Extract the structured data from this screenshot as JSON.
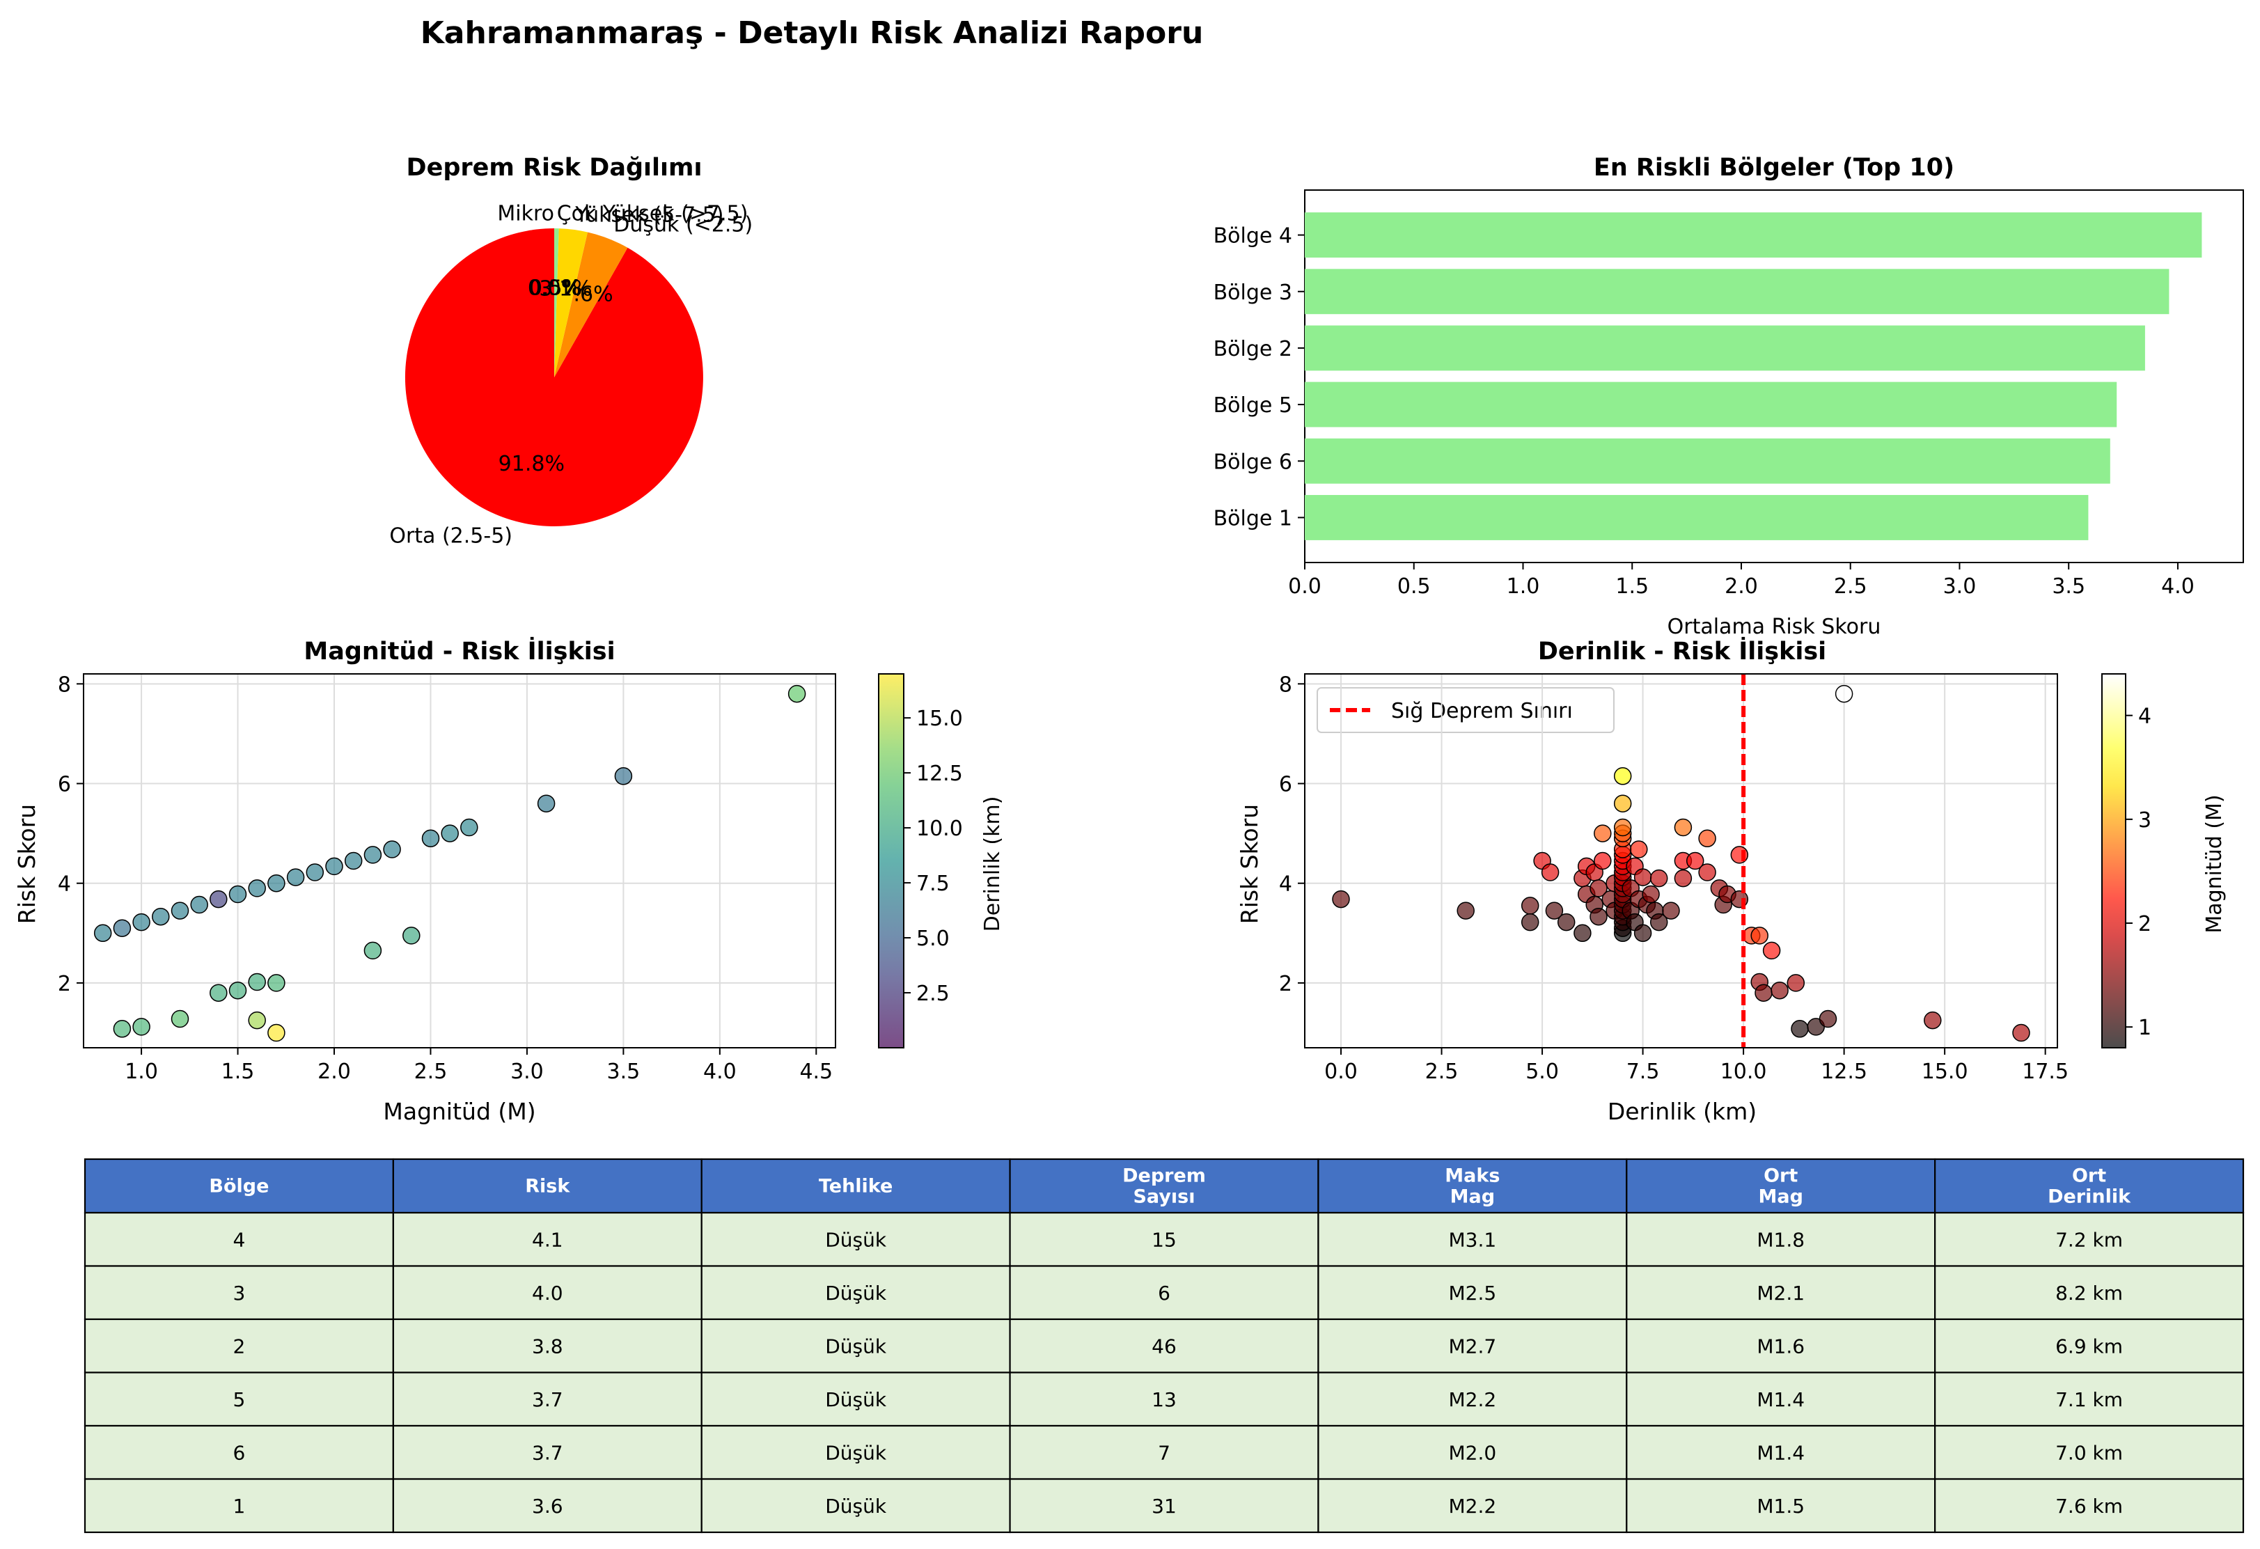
{
  "suptitle": "Kahramanmaraş - Detaylı Risk Analizi Raporu",
  "colors": {
    "pie": [
      "#FF0000",
      "#FF8C00",
      "#FFD700",
      "#90EE90",
      "#8B0000"
    ],
    "bar": "#90EE90",
    "shallow_line": "#FF0000",
    "header": "#4472C4",
    "cell": "#E2F0D9"
  },
  "chart_data": [
    {
      "id": "pie",
      "type": "pie",
      "title": "Deprem Risk Dağılımı",
      "labels": [
        "Orta (2.5-5)",
        "Düşük (<2.5)",
        "Yüksek (5-7.5)",
        "Çok Yüksek (>7.5)",
        "Mikro"
      ],
      "values": [
        91.8,
        4.6,
        3.1,
        0.5,
        0.0
      ],
      "pct_labels": [
        "91.8%",
        "4.6%",
        "3.1%",
        "0.5%",
        "0.0%"
      ]
    },
    {
      "id": "bar",
      "type": "bar",
      "orientation": "horizontal",
      "title": "En Riskli Bölgeler (Top 10)",
      "xlabel": "Ortalama Risk Skoru",
      "categories": [
        "Bölge 4",
        "Bölge 3",
        "Bölge 2",
        "Bölge 5",
        "Bölge 6",
        "Bölge 1"
      ],
      "values": [
        4.11,
        3.96,
        3.85,
        3.72,
        3.69,
        3.59
      ],
      "xlim": [
        0,
        4.3
      ],
      "xticks": [
        "0.0",
        "0.5",
        "1.0",
        "1.5",
        "2.0",
        "2.5",
        "3.0",
        "3.5",
        "4.0"
      ]
    },
    {
      "id": "scatter_mag",
      "type": "scatter",
      "title": "Magnitüd - Risk İlişkisi",
      "xlabel": "Magnitüd (M)",
      "ylabel": "Risk Skoru",
      "colorbar_label": "Derinlik (km)",
      "xlim": [
        0.7,
        4.6
      ],
      "ylim": [
        0.7,
        8.2
      ],
      "xticks": [
        "1.0",
        "1.5",
        "2.0",
        "2.5",
        "3.0",
        "3.5",
        "4.0",
        "4.5"
      ],
      "yticks": [
        "2",
        "4",
        "6",
        "8"
      ],
      "cticks": [
        "2.5",
        "5.0",
        "7.5",
        "10.0",
        "12.5",
        "15.0"
      ],
      "crange": [
        0.0,
        17.0
      ],
      "grid": true,
      "points": [
        {
          "x": 0.8,
          "y": 3.0,
          "c": 7.0
        },
        {
          "x": 0.9,
          "y": 3.1,
          "c": 6.0
        },
        {
          "x": 1.0,
          "y": 3.22,
          "c": 7.0
        },
        {
          "x": 1.1,
          "y": 3.33,
          "c": 7.0
        },
        {
          "x": 1.2,
          "y": 3.45,
          "c": 7.0
        },
        {
          "x": 1.3,
          "y": 3.57,
          "c": 7.0
        },
        {
          "x": 1.4,
          "y": 3.68,
          "c": 3.0
        },
        {
          "x": 1.5,
          "y": 3.78,
          "c": 7.0
        },
        {
          "x": 1.6,
          "y": 3.9,
          "c": 7.0
        },
        {
          "x": 1.7,
          "y": 4.0,
          "c": 7.0
        },
        {
          "x": 1.8,
          "y": 4.12,
          "c": 7.0
        },
        {
          "x": 1.9,
          "y": 4.22,
          "c": 7.0
        },
        {
          "x": 2.0,
          "y": 4.34,
          "c": 7.0
        },
        {
          "x": 2.1,
          "y": 4.45,
          "c": 7.0
        },
        {
          "x": 2.2,
          "y": 4.57,
          "c": 7.0
        },
        {
          "x": 2.3,
          "y": 4.68,
          "c": 7.0
        },
        {
          "x": 2.5,
          "y": 4.9,
          "c": 7.0
        },
        {
          "x": 2.6,
          "y": 5.0,
          "c": 7.5
        },
        {
          "x": 2.7,
          "y": 5.12,
          "c": 7.5
        },
        {
          "x": 3.1,
          "y": 5.6,
          "c": 6.5
        },
        {
          "x": 3.5,
          "y": 6.15,
          "c": 6.0
        },
        {
          "x": 4.4,
          "y": 7.8,
          "c": 12.5
        },
        {
          "x": 0.9,
          "y": 1.08,
          "c": 11.0
        },
        {
          "x": 1.0,
          "y": 1.12,
          "c": 11.0
        },
        {
          "x": 1.2,
          "y": 1.28,
          "c": 12.0
        },
        {
          "x": 1.4,
          "y": 1.8,
          "c": 10.5
        },
        {
          "x": 1.5,
          "y": 1.85,
          "c": 10.5
        },
        {
          "x": 1.6,
          "y": 2.02,
          "c": 10.5
        },
        {
          "x": 1.7,
          "y": 2.0,
          "c": 11.0
        },
        {
          "x": 1.6,
          "y": 1.25,
          "c": 14.5
        },
        {
          "x": 1.7,
          "y": 1.0,
          "c": 17.0
        },
        {
          "x": 2.2,
          "y": 2.65,
          "c": 10.5
        },
        {
          "x": 2.4,
          "y": 2.95,
          "c": 10.0
        }
      ]
    },
    {
      "id": "scatter_depth",
      "type": "scatter",
      "title": "Derinlik - Risk İlişkisi",
      "xlabel": "Derinlik (km)",
      "ylabel": "Risk Skoru",
      "colorbar_label": "Magnitüd (M)",
      "legend": "Sığ Deprem Sınırı",
      "legend_position": "upper-left",
      "threshold_x": 10,
      "xlim": [
        -0.9,
        17.8
      ],
      "ylim": [
        0.7,
        8.2
      ],
      "xticks": [
        "0.0",
        "2.5",
        "5.0",
        "7.5",
        "10.0",
        "12.5",
        "15.0",
        "17.5"
      ],
      "yticks": [
        "2",
        "4",
        "6",
        "8"
      ],
      "cticks": [
        "1",
        "2",
        "3",
        "4"
      ],
      "crange": [
        0.8,
        4.4
      ],
      "grid": true,
      "points": [
        {
          "x": 0.0,
          "y": 3.68,
          "c": 1.3
        },
        {
          "x": 3.1,
          "y": 3.45,
          "c": 1.2
        },
        {
          "x": 4.7,
          "y": 3.55,
          "c": 1.3
        },
        {
          "x": 4.7,
          "y": 3.22,
          "c": 1.1
        },
        {
          "x": 5.0,
          "y": 4.45,
          "c": 2.0
        },
        {
          "x": 5.2,
          "y": 4.22,
          "c": 2.0
        },
        {
          "x": 5.3,
          "y": 3.45,
          "c": 1.2
        },
        {
          "x": 5.6,
          "y": 3.22,
          "c": 1.1
        },
        {
          "x": 6.0,
          "y": 3.0,
          "c": 1.0
        },
        {
          "x": 6.0,
          "y": 4.1,
          "c": 1.8
        },
        {
          "x": 6.1,
          "y": 3.78,
          "c": 1.5
        },
        {
          "x": 6.1,
          "y": 4.34,
          "c": 2.0
        },
        {
          "x": 6.3,
          "y": 3.57,
          "c": 1.3
        },
        {
          "x": 6.3,
          "y": 4.22,
          "c": 1.9
        },
        {
          "x": 6.4,
          "y": 3.33,
          "c": 1.2
        },
        {
          "x": 6.4,
          "y": 3.9,
          "c": 1.6
        },
        {
          "x": 6.5,
          "y": 5.0,
          "c": 2.6
        },
        {
          "x": 6.5,
          "y": 4.45,
          "c": 2.1
        },
        {
          "x": 6.7,
          "y": 3.68,
          "c": 1.4
        },
        {
          "x": 6.8,
          "y": 4.0,
          "c": 1.7
        },
        {
          "x": 6.8,
          "y": 3.45,
          "c": 1.3
        },
        {
          "x": 7.0,
          "y": 3.0,
          "c": 0.8
        },
        {
          "x": 7.0,
          "y": 3.1,
          "c": 0.9
        },
        {
          "x": 7.0,
          "y": 3.22,
          "c": 1.0
        },
        {
          "x": 7.0,
          "y": 3.33,
          "c": 1.1
        },
        {
          "x": 7.0,
          "y": 3.45,
          "c": 1.2
        },
        {
          "x": 7.0,
          "y": 3.57,
          "c": 1.3
        },
        {
          "x": 7.0,
          "y": 3.68,
          "c": 1.4
        },
        {
          "x": 7.0,
          "y": 3.78,
          "c": 1.5
        },
        {
          "x": 7.0,
          "y": 3.9,
          "c": 1.6
        },
        {
          "x": 7.0,
          "y": 4.0,
          "c": 1.7
        },
        {
          "x": 7.0,
          "y": 4.12,
          "c": 1.8
        },
        {
          "x": 7.0,
          "y": 4.22,
          "c": 1.9
        },
        {
          "x": 7.0,
          "y": 4.34,
          "c": 2.0
        },
        {
          "x": 7.0,
          "y": 4.45,
          "c": 2.1
        },
        {
          "x": 7.0,
          "y": 4.57,
          "c": 2.2
        },
        {
          "x": 7.0,
          "y": 4.68,
          "c": 2.3
        },
        {
          "x": 7.0,
          "y": 4.9,
          "c": 2.5
        },
        {
          "x": 7.0,
          "y": 5.0,
          "c": 2.6
        },
        {
          "x": 7.0,
          "y": 5.12,
          "c": 2.7
        },
        {
          "x": 7.0,
          "y": 5.6,
          "c": 3.1
        },
        {
          "x": 7.0,
          "y": 6.15,
          "c": 3.5
        },
        {
          "x": 7.2,
          "y": 3.45,
          "c": 1.2
        },
        {
          "x": 7.2,
          "y": 3.9,
          "c": 1.6
        },
        {
          "x": 7.3,
          "y": 4.34,
          "c": 2.0
        },
        {
          "x": 7.3,
          "y": 3.22,
          "c": 1.0
        },
        {
          "x": 7.4,
          "y": 4.68,
          "c": 2.3
        },
        {
          "x": 7.4,
          "y": 3.68,
          "c": 1.4
        },
        {
          "x": 7.5,
          "y": 3.0,
          "c": 1.0
        },
        {
          "x": 7.5,
          "y": 4.12,
          "c": 1.8
        },
        {
          "x": 7.6,
          "y": 3.57,
          "c": 1.3
        },
        {
          "x": 7.7,
          "y": 3.78,
          "c": 1.5
        },
        {
          "x": 7.8,
          "y": 3.45,
          "c": 1.2
        },
        {
          "x": 7.9,
          "y": 4.1,
          "c": 1.8
        },
        {
          "x": 7.9,
          "y": 3.22,
          "c": 1.1
        },
        {
          "x": 8.2,
          "y": 3.45,
          "c": 1.3
        },
        {
          "x": 8.5,
          "y": 4.1,
          "c": 1.8
        },
        {
          "x": 8.5,
          "y": 4.45,
          "c": 2.1
        },
        {
          "x": 8.5,
          "y": 5.12,
          "c": 2.7
        },
        {
          "x": 8.8,
          "y": 4.45,
          "c": 2.1
        },
        {
          "x": 9.1,
          "y": 4.9,
          "c": 2.5
        },
        {
          "x": 9.1,
          "y": 4.22,
          "c": 1.9
        },
        {
          "x": 9.4,
          "y": 3.9,
          "c": 1.6
        },
        {
          "x": 9.5,
          "y": 3.57,
          "c": 1.3
        },
        {
          "x": 9.6,
          "y": 3.78,
          "c": 1.5
        },
        {
          "x": 9.9,
          "y": 4.57,
          "c": 2.2
        },
        {
          "x": 9.9,
          "y": 3.68,
          "c": 1.4
        },
        {
          "x": 10.2,
          "y": 2.95,
          "c": 2.4
        },
        {
          "x": 10.4,
          "y": 2.95,
          "c": 2.4
        },
        {
          "x": 10.4,
          "y": 2.02,
          "c": 1.6
        },
        {
          "x": 10.5,
          "y": 1.8,
          "c": 1.4
        },
        {
          "x": 10.7,
          "y": 2.65,
          "c": 2.2
        },
        {
          "x": 10.9,
          "y": 1.85,
          "c": 1.5
        },
        {
          "x": 11.3,
          "y": 2.0,
          "c": 1.7
        },
        {
          "x": 11.4,
          "y": 1.08,
          "c": 0.9
        },
        {
          "x": 11.8,
          "y": 1.12,
          "c": 1.0
        },
        {
          "x": 12.1,
          "y": 1.28,
          "c": 1.2
        },
        {
          "x": 12.5,
          "y": 7.8,
          "c": 4.4
        },
        {
          "x": 14.7,
          "y": 1.25,
          "c": 1.6
        },
        {
          "x": 16.9,
          "y": 1.0,
          "c": 1.7
        }
      ]
    },
    {
      "id": "summary_table",
      "type": "table",
      "headers": [
        "Bölge",
        "Risk",
        "Tehlike",
        "Deprem\nSayısı",
        "Maks\nMag",
        "Ort\nMag",
        "Ort\nDerinlik"
      ],
      "rows": [
        [
          "4",
          "4.1",
          "Düşük",
          "15",
          "M3.1",
          "M1.8",
          "7.2 km"
        ],
        [
          "3",
          "4.0",
          "Düşük",
          "6",
          "M2.5",
          "M2.1",
          "8.2 km"
        ],
        [
          "2",
          "3.8",
          "Düşük",
          "46",
          "M2.7",
          "M1.6",
          "6.9 km"
        ],
        [
          "5",
          "3.7",
          "Düşük",
          "13",
          "M2.2",
          "M1.4",
          "7.1 km"
        ],
        [
          "6",
          "3.7",
          "Düşük",
          "7",
          "M2.0",
          "M1.4",
          "7.0 km"
        ],
        [
          "1",
          "3.6",
          "Düşük",
          "31",
          "M2.2",
          "M1.5",
          "7.6 km"
        ]
      ]
    }
  ]
}
